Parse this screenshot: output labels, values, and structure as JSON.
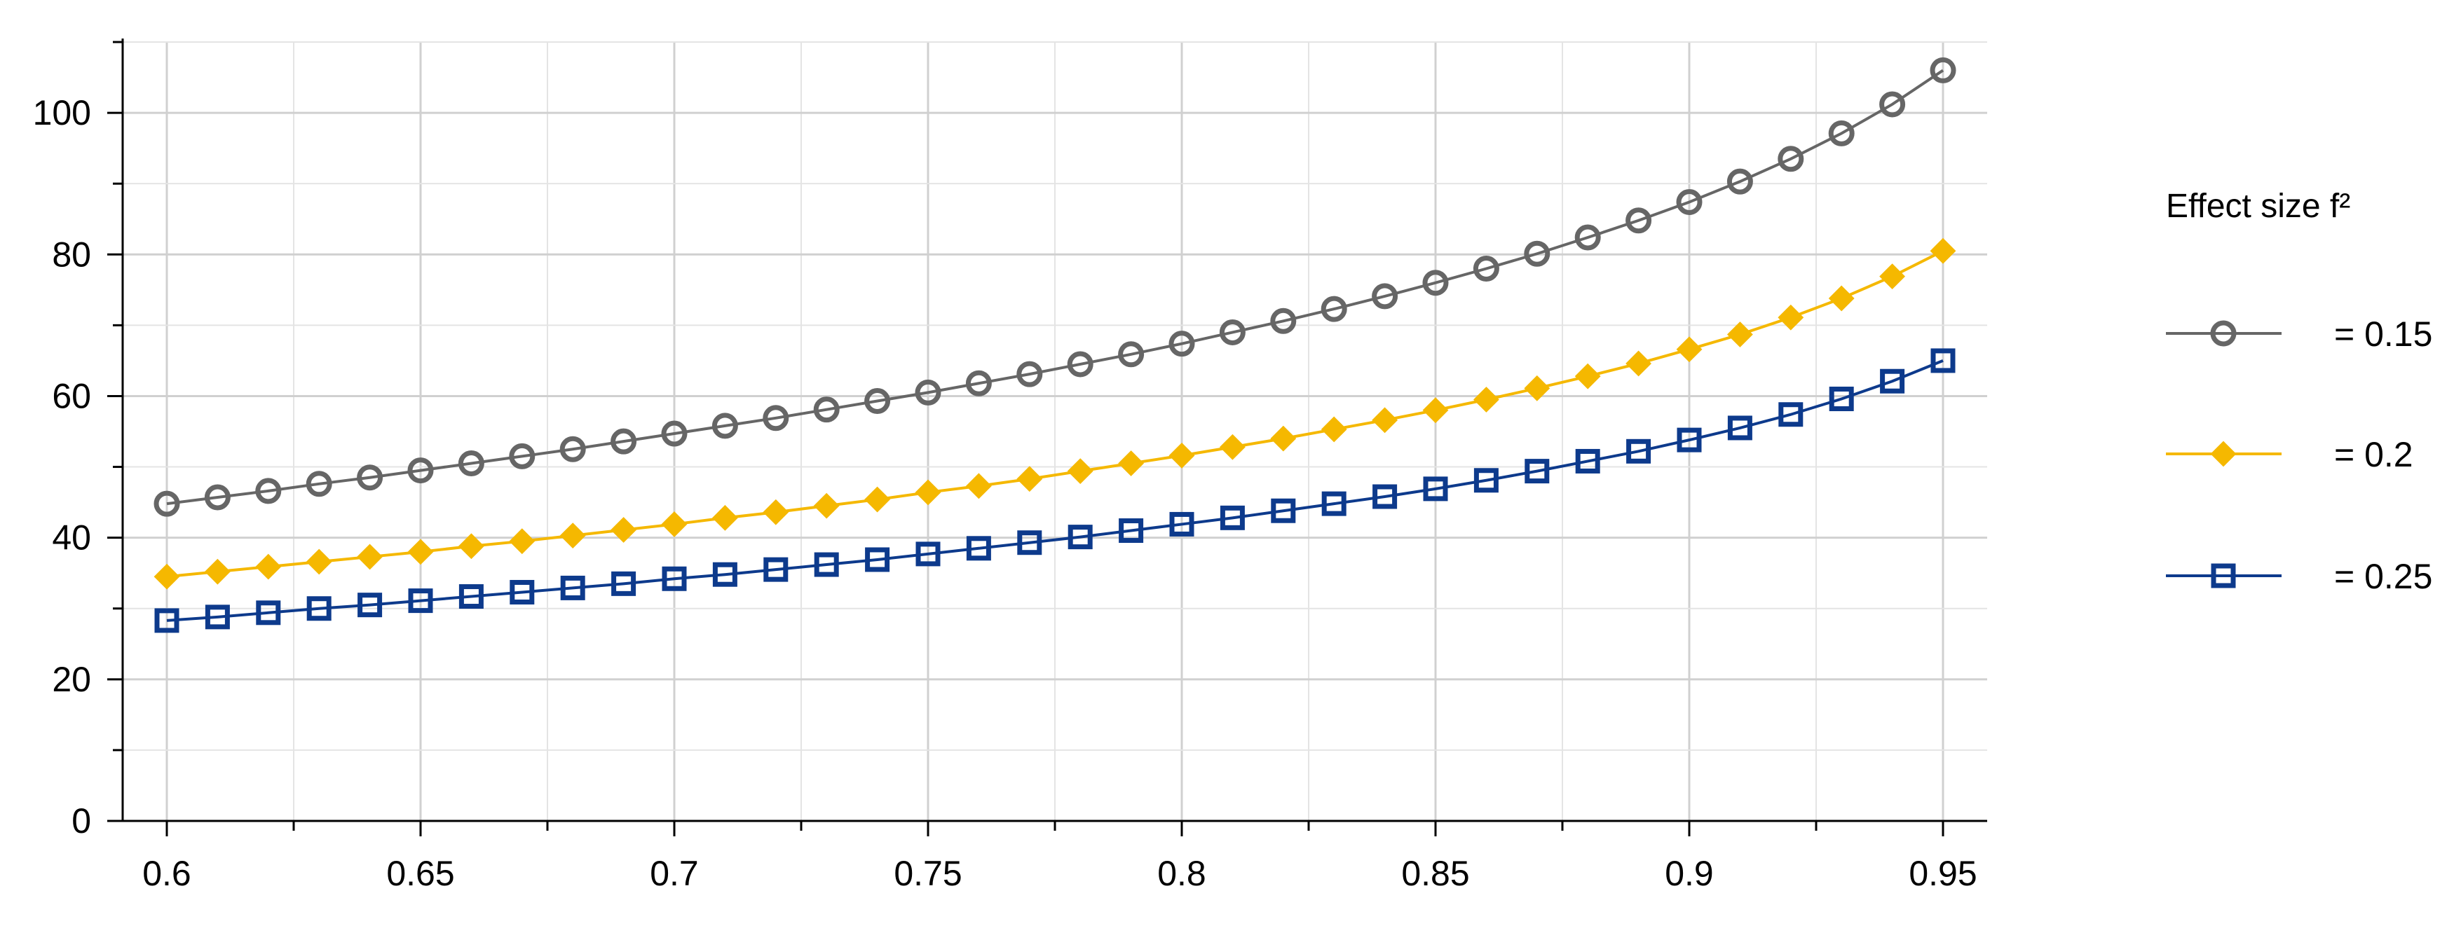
{
  "chart_data": {
    "type": "line",
    "title": "",
    "xlabel": "",
    "ylabel": "",
    "xlim": [
      0.6,
      0.95
    ],
    "ylim": [
      0,
      110
    ],
    "x_ticks": [
      "0.6",
      "0.65",
      "0.7",
      "0.75",
      "0.8",
      "0.85",
      "0.9",
      "0.95"
    ],
    "y_ticks": [
      "0",
      "20",
      "40",
      "60",
      "80",
      "100"
    ],
    "grid": true,
    "legend": {
      "title": "Effect size f²",
      "placement": "right"
    },
    "x": [
      0.6,
      0.61,
      0.62,
      0.63,
      0.64,
      0.65,
      0.66,
      0.67,
      0.68,
      0.69,
      0.7,
      0.71,
      0.72,
      0.73,
      0.74,
      0.75,
      0.76,
      0.77,
      0.78,
      0.79,
      0.8,
      0.81,
      0.82,
      0.83,
      0.84,
      0.85,
      0.86,
      0.87,
      0.88,
      0.89,
      0.9,
      0.91,
      0.92,
      0.93,
      0.94,
      0.95
    ],
    "series": [
      {
        "name": "= 0.15",
        "color": "#666666",
        "marker": "circle",
        "values": [
          44.8,
          45.7,
          46.6,
          47.6,
          48.5,
          49.5,
          50.5,
          51.5,
          52.5,
          53.6,
          54.7,
          55.8,
          56.9,
          58.1,
          59.3,
          60.5,
          61.8,
          63.1,
          64.5,
          65.9,
          67.4,
          69.0,
          70.6,
          72.3,
          74.1,
          76.0,
          78.0,
          80.1,
          82.4,
          84.8,
          87.4,
          90.3,
          93.5,
          97.1,
          101.2,
          106.0
        ]
      },
      {
        "name": "= 0.2",
        "color": "#F5B800",
        "marker": "diamond",
        "values": [
          34.5,
          35.2,
          35.9,
          36.6,
          37.3,
          38.0,
          38.8,
          39.5,
          40.3,
          41.1,
          41.9,
          42.8,
          43.6,
          44.5,
          45.4,
          46.4,
          47.3,
          48.3,
          49.4,
          50.5,
          51.6,
          52.8,
          54.0,
          55.3,
          56.6,
          58.0,
          59.5,
          61.1,
          62.8,
          64.6,
          66.6,
          68.7,
          71.1,
          73.8,
          76.9,
          80.5
        ]
      },
      {
        "name": "= 0.25",
        "color": "#0D3A8C",
        "marker": "square",
        "values": [
          28.3,
          28.8,
          29.4,
          30.0,
          30.5,
          31.1,
          31.7,
          32.3,
          32.9,
          33.5,
          34.2,
          34.8,
          35.5,
          36.2,
          36.9,
          37.7,
          38.5,
          39.3,
          40.1,
          41.0,
          41.9,
          42.8,
          43.8,
          44.8,
          45.8,
          46.9,
          48.1,
          49.4,
          50.8,
          52.2,
          53.8,
          55.5,
          57.4,
          59.6,
          62.1,
          65.0
        ]
      }
    ]
  }
}
